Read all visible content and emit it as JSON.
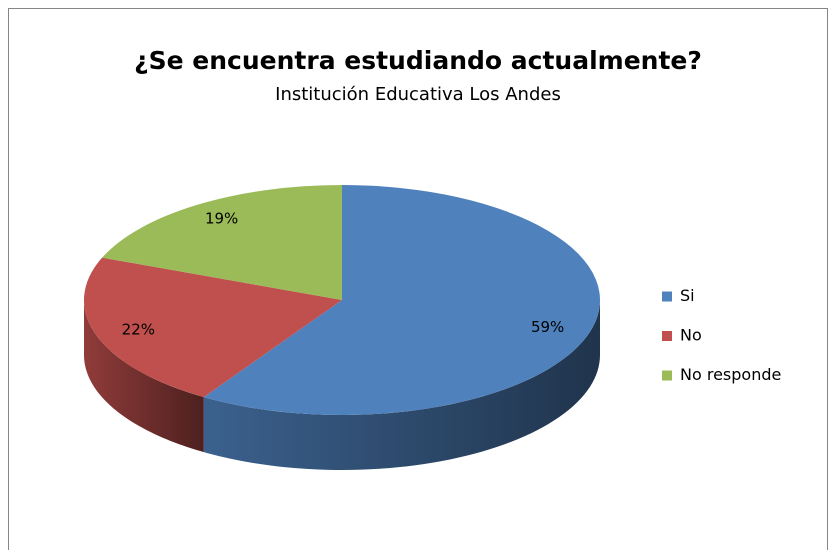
{
  "chart_data": {
    "type": "pie",
    "title": "¿Se encuentra estudiando actualmente?",
    "subtitle": "Institución Educativa Los Andes",
    "categories": [
      "Si",
      "No",
      "No responde"
    ],
    "values": [
      59,
      22,
      19
    ],
    "value_labels": [
      "59%",
      "22%",
      "19%"
    ],
    "colors": [
      "#4f81bd",
      "#c0504d",
      "#9bbb59"
    ],
    "legend": "right"
  }
}
